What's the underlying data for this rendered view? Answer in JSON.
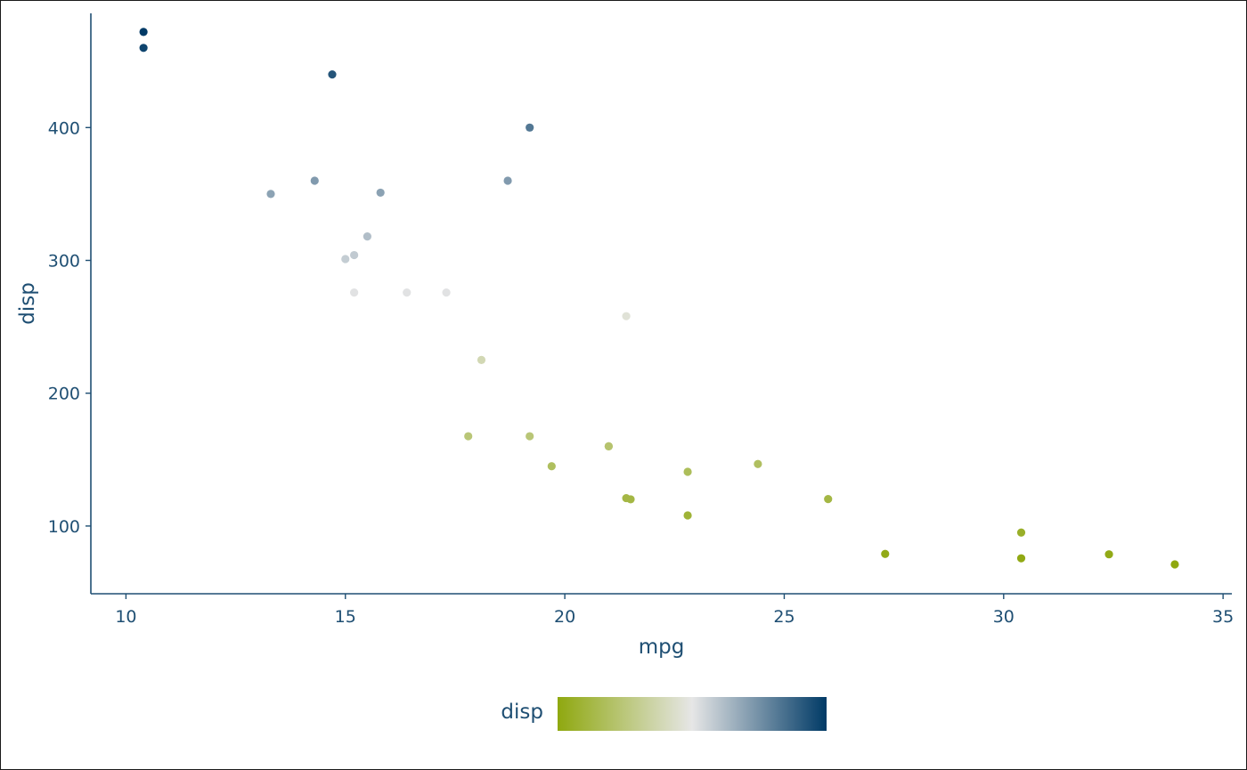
{
  "chart_data": {
    "type": "scatter",
    "xlabel": "mpg",
    "ylabel": "disp",
    "xlim": [
      9.2,
      35.2
    ],
    "ylim": [
      49,
      486
    ],
    "x_ticks": [
      10,
      15,
      20,
      25,
      30,
      35
    ],
    "y_ticks": [
      100,
      200,
      300,
      400
    ],
    "grid": false,
    "legend": {
      "title": "disp",
      "placement": "bottom",
      "type": "colorbar",
      "range": [
        71.1,
        472
      ],
      "colors": [
        "#8fa80f",
        "#e6e6e6",
        "#003a66"
      ]
    },
    "colors": {
      "axis": "#1f4f73",
      "frame": "#1a1a1a"
    },
    "points": [
      {
        "x": 21.0,
        "y": 160
      },
      {
        "x": 21.0,
        "y": 160
      },
      {
        "x": 22.8,
        "y": 108
      },
      {
        "x": 21.4,
        "y": 258
      },
      {
        "x": 18.7,
        "y": 360
      },
      {
        "x": 18.1,
        "y": 225
      },
      {
        "x": 14.3,
        "y": 360
      },
      {
        "x": 24.4,
        "y": 146.7
      },
      {
        "x": 22.8,
        "y": 140.8
      },
      {
        "x": 19.2,
        "y": 167.6
      },
      {
        "x": 17.8,
        "y": 167.6
      },
      {
        "x": 16.4,
        "y": 275.8
      },
      {
        "x": 17.3,
        "y": 275.8
      },
      {
        "x": 15.2,
        "y": 275.8
      },
      {
        "x": 10.4,
        "y": 472
      },
      {
        "x": 10.4,
        "y": 460
      },
      {
        "x": 14.7,
        "y": 440
      },
      {
        "x": 32.4,
        "y": 78.7
      },
      {
        "x": 30.4,
        "y": 75.7
      },
      {
        "x": 33.9,
        "y": 71.1
      },
      {
        "x": 21.5,
        "y": 120.1
      },
      {
        "x": 15.5,
        "y": 318
      },
      {
        "x": 15.2,
        "y": 304
      },
      {
        "x": 13.3,
        "y": 350
      },
      {
        "x": 19.2,
        "y": 400
      },
      {
        "x": 27.3,
        "y": 79
      },
      {
        "x": 26.0,
        "y": 120.3
      },
      {
        "x": 30.4,
        "y": 95.1
      },
      {
        "x": 15.8,
        "y": 351
      },
      {
        "x": 19.7,
        "y": 145
      },
      {
        "x": 15.0,
        "y": 301
      },
      {
        "x": 21.4,
        "y": 121
      }
    ]
  }
}
